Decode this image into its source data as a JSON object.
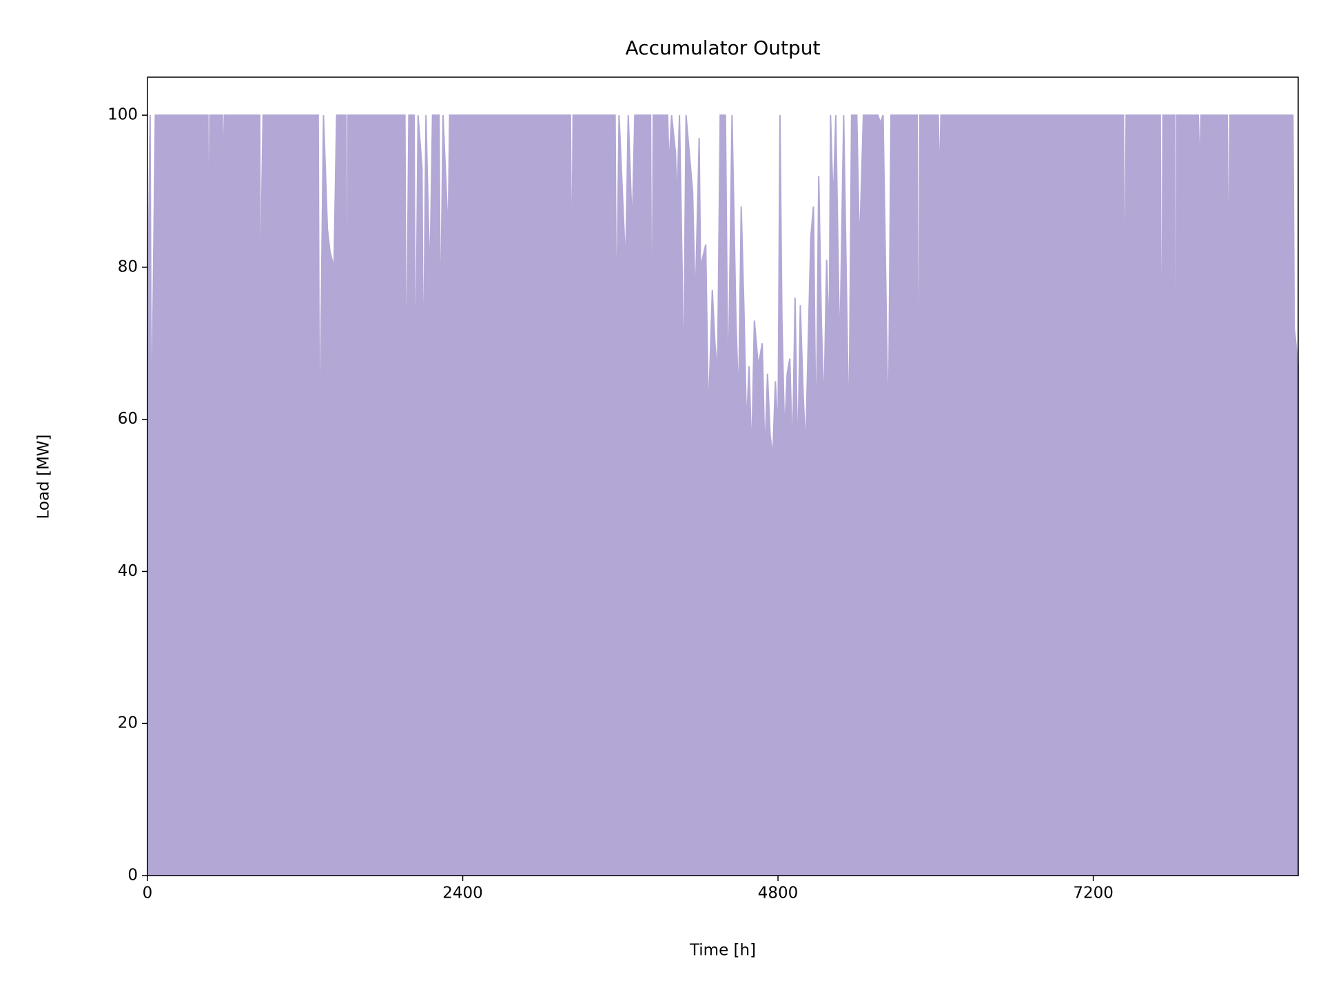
{
  "chart_data": {
    "type": "area",
    "title": "Accumulator Output",
    "xlabel": "Time [h]",
    "ylabel": "Load [MW]",
    "color": "#b3a7d5",
    "xlim": [
      0,
      8760
    ],
    "xticks": [
      0,
      2400,
      4800,
      7200
    ],
    "ylim": [
      0,
      105
    ],
    "yticks": [
      0,
      20,
      40,
      60,
      80,
      100
    ],
    "x": [
      0,
      20,
      30,
      60,
      460,
      465,
      475,
      570,
      575,
      585,
      855,
      860,
      870,
      880,
      1300,
      1310,
      1320,
      1340,
      1370,
      1390,
      1420,
      1440,
      1510,
      1517,
      1525,
      1960,
      1970,
      1990,
      2030,
      2040,
      2060,
      2090,
      2100,
      2120,
      2150,
      2170,
      2220,
      2230,
      2250,
      2290,
      2300,
      3220,
      3230,
      3240,
      3560,
      3570,
      3590,
      3640,
      3660,
      3690,
      3710,
      3830,
      3840,
      3850,
      3960,
      3970,
      3990,
      4020,
      4030,
      4050,
      4070,
      4080,
      4100,
      4150,
      4170,
      4200,
      4210,
      4250,
      4270,
      4300,
      4320,
      4340,
      4360,
      4400,
      4420,
      4450,
      4480,
      4500,
      4520,
      4540,
      4560,
      4580,
      4600,
      4620,
      4650,
      4680,
      4700,
      4720,
      4740,
      4760,
      4780,
      4800,
      4815,
      4830,
      4850,
      4870,
      4890,
      4910,
      4930,
      4950,
      4970,
      4990,
      5010,
      5030,
      5050,
      5070,
      5090,
      5110,
      5130,
      5150,
      5170,
      5190,
      5200,
      5220,
      5240,
      5270,
      5300,
      5340,
      5360,
      5400,
      5420,
      5450,
      5560,
      5580,
      5600,
      5640,
      5660,
      5860,
      5870,
      5880,
      6020,
      6030,
      6040,
      7430,
      7440,
      7450,
      7710,
      7720,
      7730,
      7820,
      7825,
      7835,
      8000,
      8010,
      8020,
      8220,
      8230,
      8240,
      8720,
      8730,
      8760
    ],
    "values": [
      70,
      100,
      56,
      100,
      100,
      78,
      100,
      100,
      91,
      100,
      100,
      65,
      89,
      100,
      100,
      52,
      70,
      100,
      85,
      82,
      80,
      100,
      100,
      49,
      100,
      100,
      61,
      100,
      100,
      61,
      100,
      93,
      63,
      100,
      78,
      100,
      100,
      70,
      100,
      84,
      100,
      100,
      75,
      100,
      100,
      71,
      100,
      80,
      100,
      85,
      100,
      100,
      61,
      100,
      100,
      93,
      100,
      95,
      88,
      100,
      80,
      62,
      100,
      90,
      75,
      97,
      80,
      83,
      60,
      77,
      70,
      66,
      100,
      100,
      62,
      100,
      73,
      62,
      88,
      75,
      59,
      67,
      55,
      73,
      67,
      70,
      55,
      66,
      58,
      55,
      65,
      58,
      100,
      73,
      58,
      66,
      68,
      55,
      76,
      54,
      75,
      64,
      56,
      70,
      84,
      88,
      55,
      92,
      73,
      61,
      81,
      70,
      100,
      88,
      100,
      68,
      100,
      57,
      100,
      100,
      82,
      100,
      100,
      99,
      100,
      57,
      100,
      100,
      47,
      100,
      100,
      90,
      100,
      100,
      70,
      100,
      100,
      55,
      100,
      100,
      18,
      100,
      100,
      92,
      100,
      100,
      76,
      100,
      100,
      72,
      67
    ]
  }
}
